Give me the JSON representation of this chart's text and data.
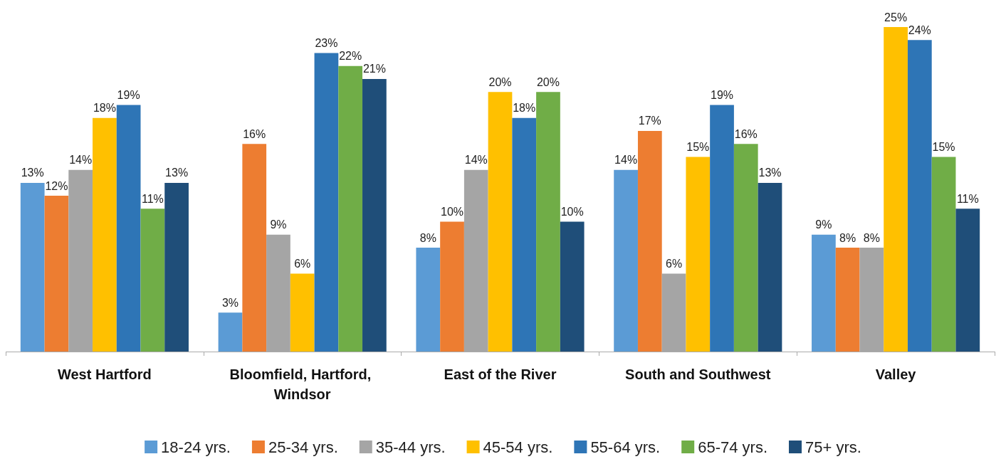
{
  "chart_data": {
    "type": "bar",
    "categories": [
      "West Hartford",
      "Bloomfield, Hartford, Windsor",
      "East of the River",
      "South and Southwest",
      "Valley"
    ],
    "series": [
      {
        "name": "18-24 yrs.",
        "color": "#5b9bd5",
        "values": [
          13,
          3,
          8,
          14,
          9
        ],
        "value_labels": [
          "13%",
          "3%",
          "8%",
          "14%",
          "9%"
        ]
      },
      {
        "name": "25-34 yrs.",
        "color": "#ed7d31",
        "values": [
          12,
          16,
          10,
          17,
          8
        ],
        "value_labels": [
          "12%",
          "16%",
          "10%",
          "17%",
          "8%"
        ]
      },
      {
        "name": "35-44 yrs.",
        "color": "#a5a5a5",
        "values": [
          14,
          9,
          14,
          6,
          8
        ],
        "value_labels": [
          "14%",
          "9%",
          "14%",
          "6%",
          "8%"
        ]
      },
      {
        "name": "45-54 yrs.",
        "color": "#ffc000",
        "values": [
          18,
          6,
          20,
          15,
          25
        ],
        "value_labels": [
          "18%",
          "6%",
          "20%",
          "15%",
          "25%"
        ]
      },
      {
        "name": "55-64 yrs.",
        "color": "#2e75b6",
        "values": [
          19,
          23,
          18,
          19,
          24
        ],
        "value_labels": [
          "19%",
          "23%",
          "18%",
          "19%",
          "24%"
        ]
      },
      {
        "name": "65-74 yrs.",
        "color": "#70ad47",
        "values": [
          11,
          22,
          20,
          16,
          15
        ],
        "value_labels": [
          "11%",
          "22%",
          "20%",
          "16%",
          "15%"
        ]
      },
      {
        "name": "75+ yrs.",
        "color": "#1f4e79",
        "values": [
          13,
          21,
          10,
          13,
          11
        ],
        "value_labels": [
          "13%",
          "21%",
          "10%",
          "13%",
          "11%"
        ]
      }
    ],
    "legend": "bottom",
    "grid": false
  }
}
